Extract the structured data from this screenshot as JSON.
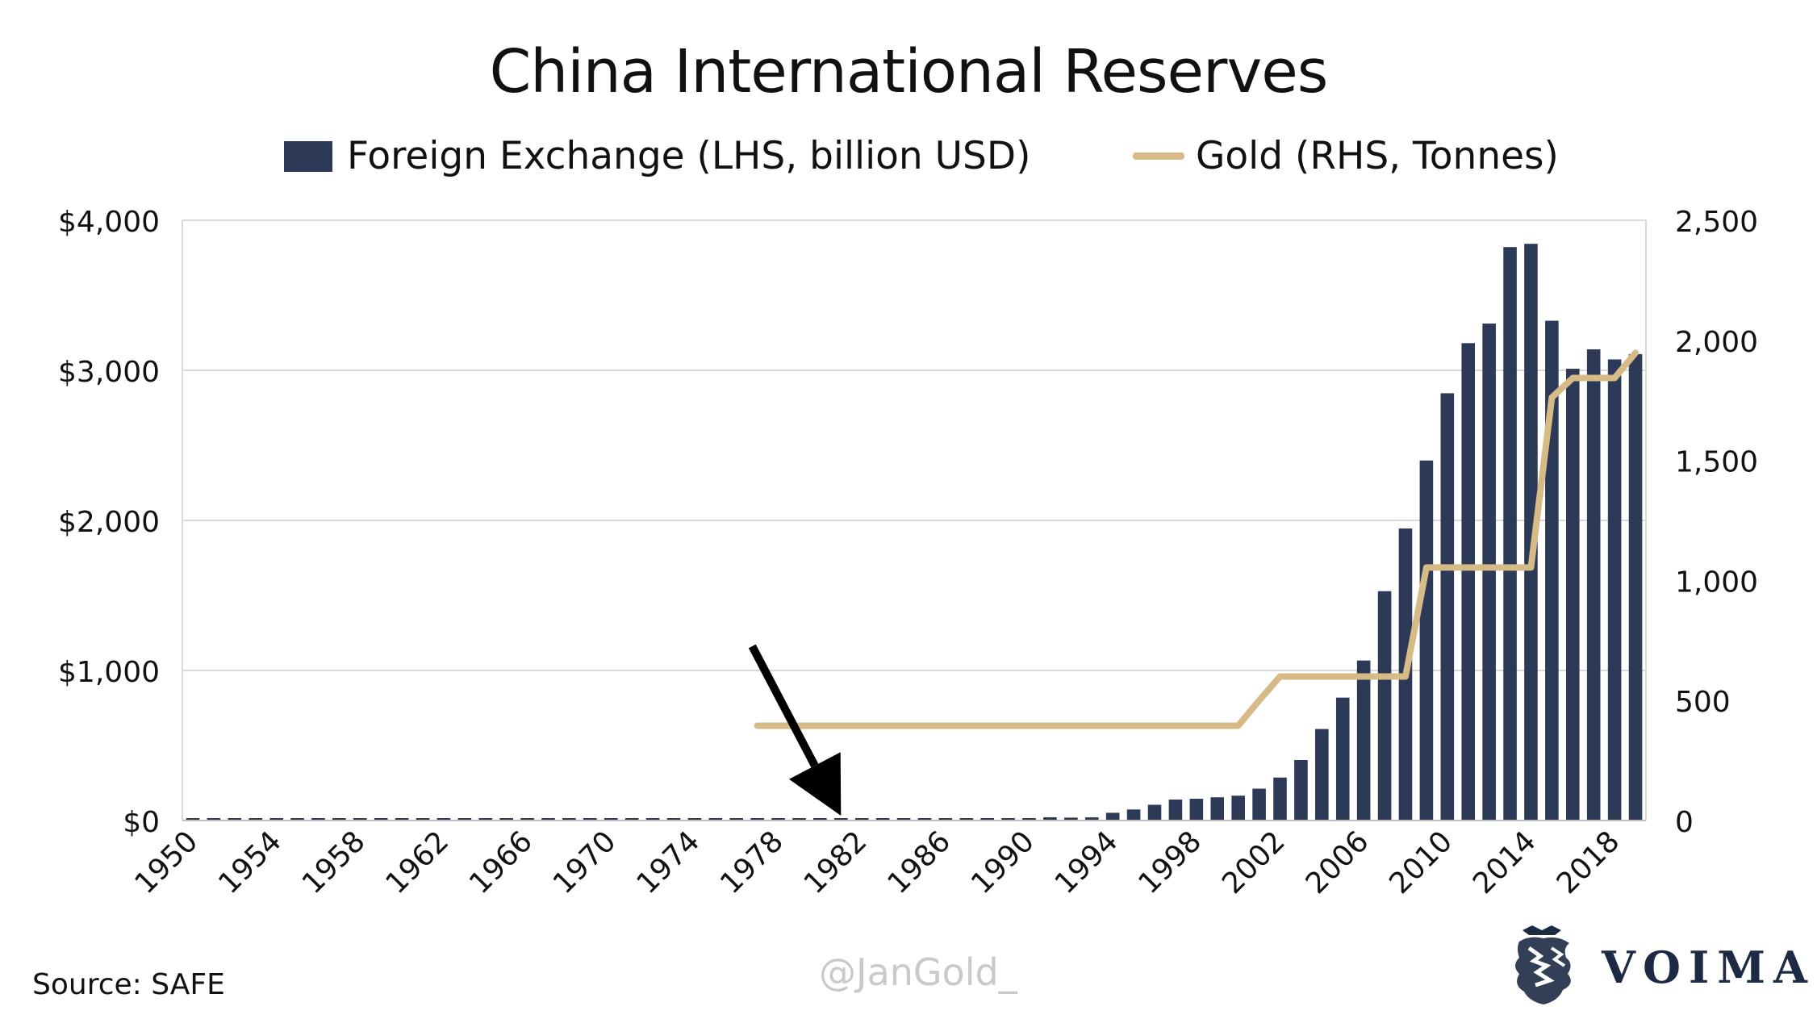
{
  "title": "China International Reserves",
  "source": "Source: SAFE",
  "watermark": "@JanGold_",
  "brand": {
    "name": "VOIMA",
    "icon": "lion-crest-icon",
    "color": "#1c2a44"
  },
  "legend": {
    "fx_label": "Foreign Exchange (LHS, billion USD)",
    "gold_label": "Gold (RHS, Tonnes)"
  },
  "colors": {
    "bars": "#2c3a57",
    "line": "#d7bb87",
    "grid": "#d9d9d9",
    "arrow": "#000000"
  },
  "chart_data": {
    "type": "bar",
    "title": "China International Reserves",
    "x": [
      1950,
      1951,
      1952,
      1953,
      1954,
      1955,
      1956,
      1957,
      1958,
      1959,
      1960,
      1961,
      1962,
      1963,
      1964,
      1965,
      1966,
      1967,
      1968,
      1969,
      1970,
      1971,
      1972,
      1973,
      1974,
      1975,
      1976,
      1977,
      1978,
      1979,
      1980,
      1981,
      1982,
      1983,
      1984,
      1985,
      1986,
      1987,
      1988,
      1989,
      1990,
      1991,
      1992,
      1993,
      1994,
      1995,
      1996,
      1997,
      1998,
      1999,
      2000,
      2001,
      2002,
      2003,
      2004,
      2005,
      2006,
      2007,
      2008,
      2009,
      2010,
      2011,
      2012,
      2013,
      2014,
      2015,
      2016,
      2017,
      2018,
      2019
    ],
    "x_tick_labels": [
      "1950",
      "1954",
      "1958",
      "1962",
      "1966",
      "1970",
      "1974",
      "1978",
      "1982",
      "1986",
      "1990",
      "1994",
      "1998",
      "2002",
      "2006",
      "2010",
      "2014",
      "2018"
    ],
    "left_axis": {
      "ylim": [
        0,
        4000
      ],
      "tick_labels": [
        "$0",
        "$1,000",
        "$2,000",
        "$3,000",
        "$4,000"
      ],
      "ticks": [
        0,
        1000,
        2000,
        3000,
        4000
      ]
    },
    "right_axis": {
      "ylim": [
        0,
        2500
      ],
      "tick_labels": [
        "0",
        "500",
        "1,000",
        "1,500",
        "2,000",
        "2,500"
      ],
      "ticks": [
        0,
        500,
        1000,
        1500,
        2000,
        2500
      ]
    },
    "grid": true,
    "legend_position": "top",
    "series": [
      {
        "name": "Foreign Exchange (LHS, billion USD)",
        "type": "bar",
        "axis": "left",
        "values": [
          0.2,
          0.5,
          0.1,
          0.1,
          0.1,
          0.2,
          0.1,
          0.1,
          0.1,
          0.1,
          0.1,
          0.1,
          0.1,
          0.1,
          0.2,
          0.1,
          0.2,
          0.2,
          0.2,
          0.5,
          0.1,
          0.4,
          0.2,
          -0.1,
          0.0,
          0.2,
          0.6,
          0.9,
          1.6,
          0.8,
          -1.3,
          2.7,
          7,
          9,
          8,
          2.6,
          2.1,
          2.9,
          3.4,
          5.6,
          11.1,
          21.7,
          19.4,
          21.2,
          51.6,
          73.6,
          105,
          139.9,
          145,
          154.7,
          165.6,
          212.2,
          286.4,
          403.3,
          609.9,
          818.9,
          1066.3,
          1528.2,
          1946,
          2399.2,
          2847.3,
          3181.1,
          3311.6,
          3821.3,
          3843,
          3330.4,
          3010.5,
          3139.9,
          3072.7,
          3107.9
        ]
      },
      {
        "name": "Gold (RHS, Tonnes)",
        "type": "line",
        "axis": "right",
        "x": [
          1977,
          1978,
          1979,
          1980,
          1981,
          1982,
          1983,
          1984,
          1985,
          1986,
          1987,
          1988,
          1989,
          1990,
          1991,
          1992,
          1993,
          1994,
          1995,
          1996,
          1997,
          1998,
          1999,
          2000,
          2001,
          2002,
          2003,
          2004,
          2005,
          2006,
          2007,
          2008,
          2009,
          2010,
          2011,
          2012,
          2013,
          2014,
          2015,
          2016,
          2017,
          2018,
          2019
        ],
        "values": [
          395,
          395,
          395,
          395,
          395,
          395,
          395,
          395,
          395,
          395,
          395,
          395,
          395,
          395,
          395,
          395,
          395,
          395,
          395,
          395,
          395,
          395,
          395,
          395,
          500,
          600,
          600,
          600,
          600,
          600,
          600,
          600,
          1054,
          1054,
          1054,
          1054,
          1054,
          1054,
          1762,
          1843,
          1843,
          1843,
          1948
        ]
      }
    ],
    "annotations": [
      {
        "type": "arrow",
        "points_to_year": 1981,
        "value": 0
      }
    ]
  }
}
